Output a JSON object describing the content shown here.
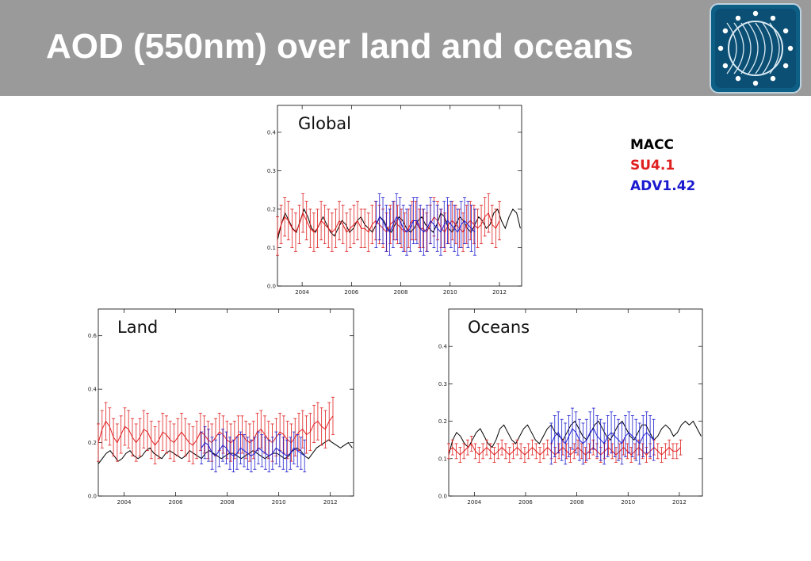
{
  "slide": {
    "title": "AOD (550nm) over land and oceans"
  },
  "logo": {
    "icon": "globe-stars-logo-icon",
    "bg": "#0e5f86"
  },
  "legend": {
    "entries": [
      {
        "label": "MACC",
        "color": "#000000"
      },
      {
        "label": "SU4.1",
        "color": "#e02020"
      },
      {
        "label": "ADV1.42",
        "color": "#1a1ad0"
      }
    ]
  },
  "colors": {
    "macc": "#000000",
    "su": "#e02020",
    "adv": "#2020d0"
  },
  "chart_data": [
    {
      "type": "line",
      "panel_label": "Global",
      "xlim": [
        2003.0,
        2012.9
      ],
      "ylim": [
        0.0,
        0.47
      ],
      "x_ticks": [
        2004,
        2006,
        2008,
        2010,
        2012
      ],
      "y_ticks": [
        0.0,
        0.1,
        0.2,
        0.3,
        0.4
      ],
      "y_tick_labels": [
        "0.0",
        "0.1",
        "0.2",
        "0.3",
        "0.4"
      ],
      "series": [
        {
          "key": "macc",
          "x_start": 2003.0,
          "x_end": 2012.85,
          "values": [
            0.12,
            0.16,
            0.19,
            0.17,
            0.15,
            0.14,
            0.17,
            0.2,
            0.18,
            0.15,
            0.14,
            0.16,
            0.18,
            0.16,
            0.14,
            0.13,
            0.15,
            0.17,
            0.16,
            0.14,
            0.15,
            0.17,
            0.18,
            0.16,
            0.15,
            0.14,
            0.16,
            0.18,
            0.17,
            0.15,
            0.14,
            0.16,
            0.18,
            0.17,
            0.15,
            0.14,
            0.15,
            0.17,
            0.18,
            0.16,
            0.15,
            0.14,
            0.16,
            0.19,
            0.18,
            0.15,
            0.14,
            0.16,
            0.18,
            0.17,
            0.15,
            0.14,
            0.16,
            0.18,
            0.17,
            0.15,
            0.16,
            0.19,
            0.2,
            0.17,
            0.15,
            0.18,
            0.2,
            0.19,
            0.15
          ]
        },
        {
          "key": "su",
          "x_start": 2003.0,
          "x_end": 2012.0,
          "values": [
            0.13,
            0.16,
            0.18,
            0.17,
            0.15,
            0.14,
            0.16,
            0.19,
            0.17,
            0.15,
            0.14,
            0.15,
            0.17,
            0.16,
            0.15,
            0.14,
            0.15,
            0.17,
            0.16,
            0.14,
            0.15,
            0.16,
            0.17,
            0.15,
            0.15,
            0.14,
            0.16,
            0.17,
            0.16,
            0.15,
            0.14,
            0.16,
            0.17,
            0.16,
            0.15,
            0.14,
            0.15,
            0.17,
            0.17,
            0.15,
            0.15,
            0.14,
            0.16,
            0.18,
            0.17,
            0.15,
            0.14,
            0.16,
            0.17,
            0.16,
            0.15,
            0.14,
            0.16,
            0.17,
            0.16,
            0.15,
            0.16,
            0.18,
            0.19,
            0.16,
            0.15,
            0.17
          ],
          "error": 0.05
        },
        {
          "key": "adv",
          "x_start": 2007.0,
          "x_end": 2011.0,
          "values": [
            0.16,
            0.18,
            0.17,
            0.15,
            0.14,
            0.16,
            0.18,
            0.17,
            0.15,
            0.14,
            0.15,
            0.17,
            0.17,
            0.15,
            0.14,
            0.15,
            0.17,
            0.16,
            0.15,
            0.14,
            0.16,
            0.17,
            0.16,
            0.15,
            0.14,
            0.16,
            0.17,
            0.16,
            0.15,
            0.14
          ],
          "error": 0.06
        }
      ]
    },
    {
      "type": "line",
      "panel_label": "Land",
      "xlim": [
        2003.0,
        2012.9
      ],
      "ylim": [
        0.0,
        0.7
      ],
      "x_ticks": [
        2004,
        2006,
        2008,
        2010,
        2012
      ],
      "y_ticks": [
        0.0,
        0.2,
        0.4,
        0.6
      ],
      "y_tick_labels": [
        "0.0",
        "0.2",
        "0.4",
        "0.6"
      ],
      "series": [
        {
          "key": "macc",
          "x_start": 2003.0,
          "x_end": 2012.85,
          "values": [
            0.12,
            0.14,
            0.16,
            0.17,
            0.15,
            0.13,
            0.14,
            0.16,
            0.17,
            0.15,
            0.14,
            0.15,
            0.17,
            0.18,
            0.16,
            0.15,
            0.14,
            0.16,
            0.17,
            0.16,
            0.15,
            0.14,
            0.15,
            0.17,
            0.16,
            0.15,
            0.14,
            0.16,
            0.17,
            0.16,
            0.15,
            0.14,
            0.15,
            0.16,
            0.16,
            0.15,
            0.14,
            0.15,
            0.16,
            0.17,
            0.16,
            0.15,
            0.14,
            0.15,
            0.16,
            0.16,
            0.15,
            0.14,
            0.15,
            0.17,
            0.18,
            0.17,
            0.15,
            0.14,
            0.16,
            0.18,
            0.19,
            0.2,
            0.21,
            0.2,
            0.19,
            0.18,
            0.19,
            0.2,
            0.18
          ]
        },
        {
          "key": "su",
          "x_start": 2003.0,
          "x_end": 2012.1,
          "values": [
            0.2,
            0.25,
            0.28,
            0.26,
            0.22,
            0.2,
            0.23,
            0.26,
            0.25,
            0.22,
            0.2,
            0.22,
            0.25,
            0.24,
            0.21,
            0.19,
            0.21,
            0.24,
            0.23,
            0.21,
            0.2,
            0.22,
            0.24,
            0.22,
            0.2,
            0.19,
            0.21,
            0.24,
            0.23,
            0.21,
            0.2,
            0.22,
            0.24,
            0.23,
            0.21,
            0.2,
            0.21,
            0.23,
            0.23,
            0.21,
            0.2,
            0.21,
            0.24,
            0.25,
            0.23,
            0.21,
            0.2,
            0.22,
            0.24,
            0.23,
            0.21,
            0.2,
            0.22,
            0.24,
            0.25,
            0.23,
            0.24,
            0.27,
            0.28,
            0.26,
            0.25,
            0.28,
            0.3
          ],
          "error": 0.07
        },
        {
          "key": "adv",
          "x_start": 2007.0,
          "x_end": 2011.0,
          "values": [
            0.18,
            0.2,
            0.19,
            0.16,
            0.15,
            0.17,
            0.19,
            0.18,
            0.16,
            0.15,
            0.16,
            0.18,
            0.17,
            0.16,
            0.15,
            0.16,
            0.18,
            0.17,
            0.16,
            0.15,
            0.16,
            0.18,
            0.17,
            0.16,
            0.15,
            0.16,
            0.18,
            0.17,
            0.16,
            0.15
          ],
          "error": 0.06
        }
      ]
    },
    {
      "type": "line",
      "panel_label": "Oceans",
      "xlim": [
        2003.0,
        2012.9
      ],
      "ylim": [
        0.0,
        0.5
      ],
      "x_ticks": [
        2004,
        2006,
        2008,
        2010,
        2012
      ],
      "y_ticks": [
        0.0,
        0.1,
        0.2,
        0.3,
        0.4
      ],
      "y_tick_labels": [
        "0.0",
        "0.1",
        "0.2",
        "0.3",
        "0.4"
      ],
      "series": [
        {
          "key": "macc",
          "x_start": 2003.0,
          "x_end": 2012.85,
          "values": [
            0.11,
            0.15,
            0.17,
            0.16,
            0.14,
            0.13,
            0.15,
            0.17,
            0.18,
            0.16,
            0.14,
            0.13,
            0.15,
            0.18,
            0.19,
            0.17,
            0.15,
            0.14,
            0.16,
            0.18,
            0.19,
            0.17,
            0.15,
            0.14,
            0.16,
            0.18,
            0.19,
            0.17,
            0.16,
            0.15,
            0.17,
            0.19,
            0.2,
            0.18,
            0.16,
            0.15,
            0.17,
            0.19,
            0.2,
            0.18,
            0.16,
            0.15,
            0.17,
            0.19,
            0.2,
            0.18,
            0.16,
            0.15,
            0.17,
            0.19,
            0.19,
            0.17,
            0.15,
            0.16,
            0.18,
            0.19,
            0.18,
            0.16,
            0.17,
            0.19,
            0.2,
            0.19,
            0.2,
            0.18,
            0.16
          ]
        },
        {
          "key": "su",
          "x_start": 2003.0,
          "x_end": 2012.05,
          "values": [
            0.12,
            0.13,
            0.12,
            0.11,
            0.12,
            0.13,
            0.14,
            0.12,
            0.11,
            0.12,
            0.13,
            0.12,
            0.11,
            0.12,
            0.13,
            0.12,
            0.11,
            0.12,
            0.13,
            0.12,
            0.11,
            0.12,
            0.13,
            0.12,
            0.11,
            0.12,
            0.13,
            0.12,
            0.11,
            0.12,
            0.13,
            0.12,
            0.11,
            0.12,
            0.13,
            0.12,
            0.11,
            0.12,
            0.13,
            0.12,
            0.11,
            0.12,
            0.13,
            0.12,
            0.11,
            0.12,
            0.13,
            0.12,
            0.11,
            0.12,
            0.13,
            0.12,
            0.11,
            0.12,
            0.13,
            0.12,
            0.11,
            0.12,
            0.13,
            0.12,
            0.12,
            0.13
          ],
          "error": 0.02
        },
        {
          "key": "adv",
          "x_start": 2007.0,
          "x_end": 2011.0,
          "values": [
            0.14,
            0.16,
            0.17,
            0.15,
            0.14,
            0.16,
            0.18,
            0.17,
            0.15,
            0.14,
            0.15,
            0.17,
            0.18,
            0.16,
            0.15,
            0.14,
            0.16,
            0.17,
            0.16,
            0.15,
            0.14,
            0.16,
            0.17,
            0.16,
            0.15,
            0.14,
            0.16,
            0.17,
            0.16,
            0.15
          ],
          "error": 0.055
        }
      ]
    }
  ]
}
